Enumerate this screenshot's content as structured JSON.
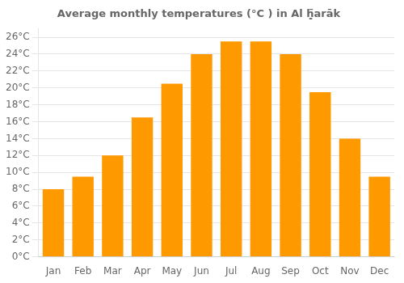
{
  "chart_data": {
    "type": "bar",
    "title": "Average monthly temperatures (°C ) in Al ḥ̣̄arāk",
    "categories": [
      "Jan",
      "Feb",
      "Mar",
      "Apr",
      "May",
      "Jun",
      "Jul",
      "Aug",
      "Sep",
      "Oct",
      "Nov",
      "Dec"
    ],
    "values": [
      8.0,
      9.5,
      12.0,
      16.5,
      20.5,
      24.0,
      25.5,
      25.5,
      24.0,
      19.5,
      14.0,
      9.5
    ],
    "color": "#FF9900",
    "ylim": [
      0,
      27
    ],
    "yticks": [
      {
        "value": 0,
        "label": "0°C"
      },
      {
        "value": 2,
        "label": "2°C"
      },
      {
        "value": 4,
        "label": "4°C"
      },
      {
        "value": 6,
        "label": "6°C"
      },
      {
        "value": 8,
        "label": "8°C"
      },
      {
        "value": 10,
        "label": "10°C"
      },
      {
        "value": 12,
        "label": "12°C"
      },
      {
        "value": 14,
        "label": "14°C"
      },
      {
        "value": 16,
        "label": "16°C"
      },
      {
        "value": 18,
        "label": "18°C"
      },
      {
        "value": 20,
        "label": "20°C"
      },
      {
        "value": 22,
        "label": "22°C"
      },
      {
        "value": 24,
        "label": "24°C"
      },
      {
        "value": 26,
        "label": "26°C"
      }
    ],
    "grid": true
  }
}
